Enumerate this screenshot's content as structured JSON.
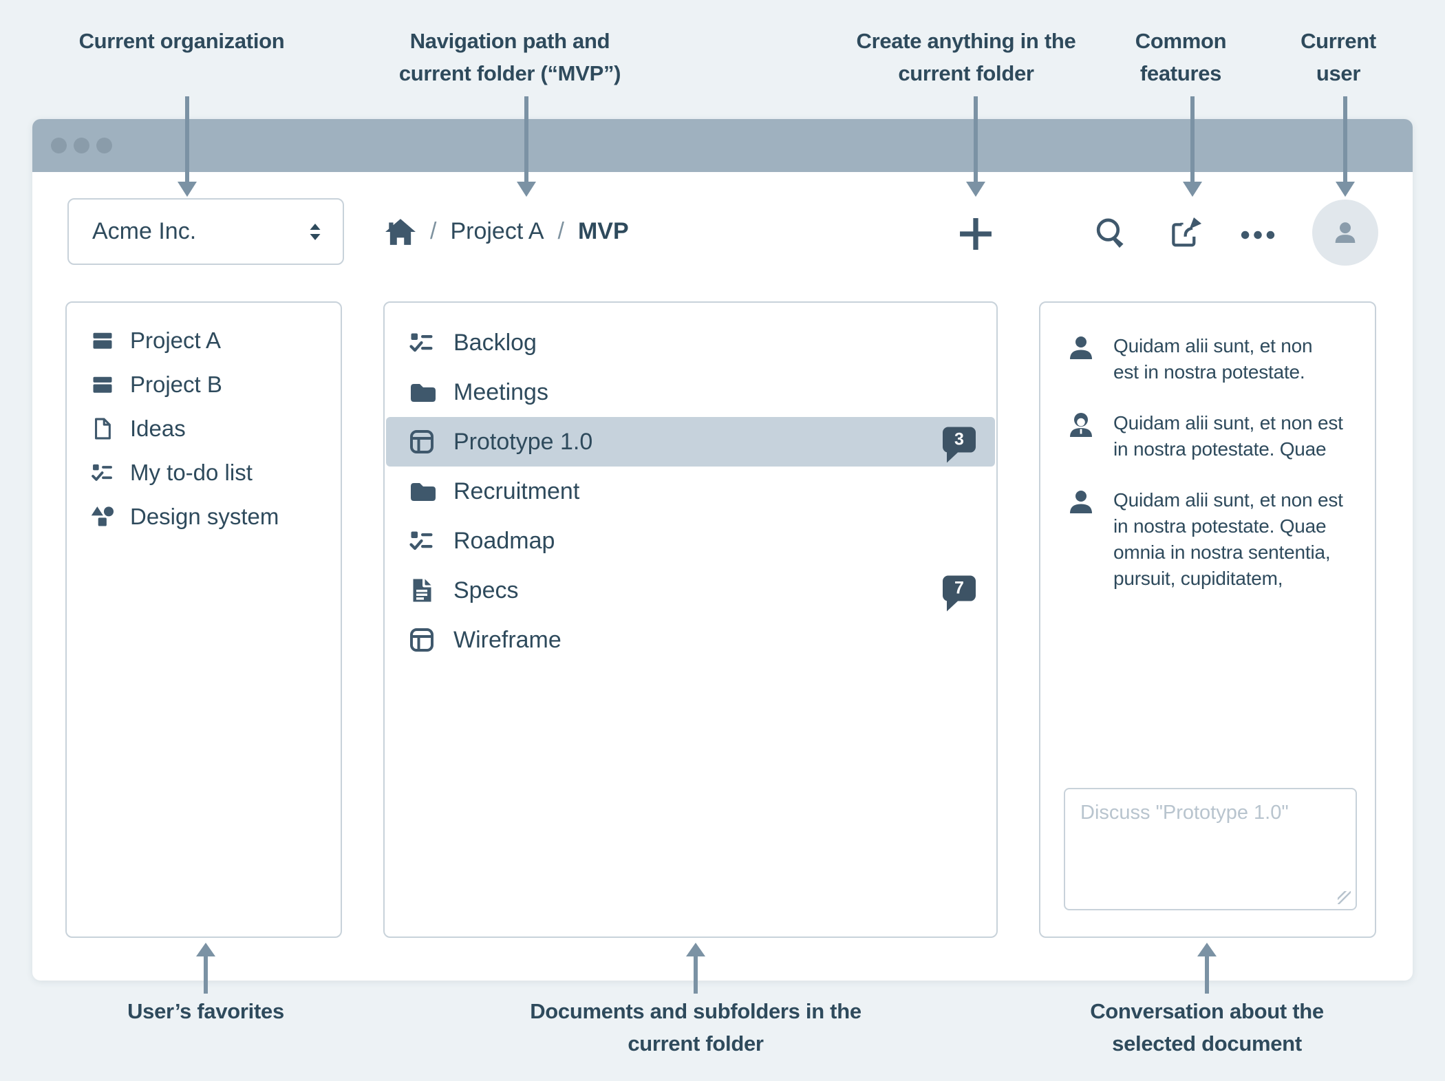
{
  "annotations": {
    "top": [
      {
        "text": "Current organization"
      },
      {
        "text": "Navigation path and current folder (“MVP”)"
      },
      {
        "text": "Create anything in the current folder"
      },
      {
        "text": "Common features"
      },
      {
        "text": "Current user"
      }
    ],
    "bottom": [
      {
        "text": "User’s favorites"
      },
      {
        "text": "Documents and subfolders in the current folder"
      },
      {
        "text": "Conversation about the selected document"
      }
    ]
  },
  "header": {
    "org_selector": {
      "value": "Acme Inc.",
      "icon": "sorter-icon"
    },
    "breadcrumb": {
      "home": "home-icon",
      "separator": "/",
      "items": [
        "Project A"
      ],
      "current": "MVP"
    },
    "actions": [
      {
        "name": "create",
        "icon": "plus-icon"
      },
      {
        "name": "search",
        "icon": "search-icon"
      },
      {
        "name": "share",
        "icon": "share-icon"
      },
      {
        "name": "more",
        "icon": "ellipsis-icon"
      },
      {
        "name": "user",
        "icon": "avatar-icon"
      }
    ]
  },
  "favorites": {
    "items": [
      {
        "icon": "project-icon",
        "label": "Project A"
      },
      {
        "icon": "project-icon",
        "label": "Project B"
      },
      {
        "icon": "document-icon",
        "label": "Ideas"
      },
      {
        "icon": "checklist-icon",
        "label": "My to-do list"
      },
      {
        "icon": "shapes-icon",
        "label": "Design system"
      }
    ]
  },
  "documents": {
    "items": [
      {
        "icon": "checklist-icon",
        "label": "Backlog"
      },
      {
        "icon": "folder-icon",
        "label": "Meetings"
      },
      {
        "icon": "layout-icon",
        "label": "Prototype 1.0",
        "selected": true,
        "badge": "3"
      },
      {
        "icon": "folder-icon",
        "label": "Recruitment"
      },
      {
        "icon": "checklist-icon",
        "label": "Roadmap"
      },
      {
        "icon": "spec-icon",
        "label": "Specs",
        "badge": "7"
      },
      {
        "icon": "layout-icon",
        "label": "Wireframe"
      }
    ]
  },
  "conversation": {
    "messages": [
      {
        "avatar": "user-icon",
        "text": "Quidam alii sunt, et non\nest in nostra potestate."
      },
      {
        "avatar": "user-female-icon",
        "text": "Quidam alii sunt, et non est\nin nostra potestate. Quae"
      },
      {
        "avatar": "user-icon",
        "text": "Quidam alii sunt, et non est\nin nostra potestate. Quae\nomnia in nostra sententia,\npursuit, cupiditatem,"
      }
    ],
    "composer": {
      "placeholder": "Discuss \"Prototype 1.0\""
    }
  },
  "colors": {
    "accent_dark": "#3d5365",
    "titlebar": "#9fb1bf",
    "selection": "#c6d2dc",
    "arrow": "#7b92a4",
    "background": "#edf2f5"
  }
}
